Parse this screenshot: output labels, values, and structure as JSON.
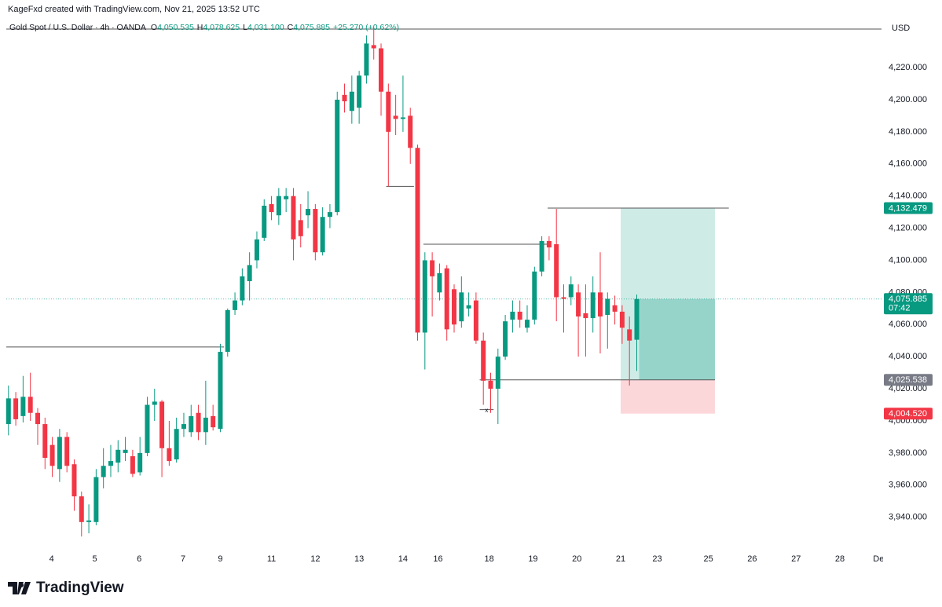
{
  "credit": "KageFxd created with TradingView.com, Nov 21, 2025 13:52 UTC",
  "brand": "TradingView",
  "chart_data": {
    "type": "candlestick",
    "symbol": "Gold Spot / U.S. Dollar · 4h · OANDA",
    "legend": [
      {
        "key": "O",
        "text": "4,050.535"
      },
      {
        "key": "H",
        "text": "4,078.625"
      },
      {
        "key": "L",
        "text": "4,031.100"
      },
      {
        "key": "C",
        "text": "4,075.885"
      }
    ],
    "change": "+25.270 (+0.62%)",
    "currency": "USD",
    "countdown": "07:42",
    "up_color": "#089981",
    "down_color": "#f23645",
    "grid": false,
    "open": [
      3998,
      4014,
      4003,
      4015,
      4005,
      3998,
      3985,
      3970,
      3990,
      3973,
      3953,
      3937,
      3937,
      3965,
      3972,
      3974,
      3980,
      3978,
      3968,
      3980,
      4010,
      4012,
      3983,
      3976,
      3995,
      3993,
      4005,
      3993,
      4003,
      3995,
      4043,
      4069,
      4075,
      4087,
      4100,
      4114,
      4135,
      4128,
      4138,
      4140,
      4125,
      4128,
      4132,
      4105,
      4127,
      4130,
      4203,
      4193,
      4195,
      4215,
      4234,
      4232,
      4205,
      4190,
      4188,
      4190,
      4170,
      4055,
      4100,
      4080,
      4095,
      4082,
      4062,
      4070,
      4075,
      4050,
      4025,
      4020,
      4040,
      4063,
      4068,
      4058,
      4063,
      4093,
      4112,
      4110,
      4077,
      4077,
      4080,
      4067,
      4064,
      4080,
      4066,
      4072,
      4068,
      4057,
      4050.535
    ],
    "high": [
      4022,
      4018,
      4028,
      4030,
      4008,
      4002,
      3990,
      3995,
      3993,
      3976,
      3956,
      3948,
      3970,
      3983,
      3985,
      3988,
      3990,
      3982,
      3990,
      4015,
      4020,
      4013,
      4000,
      4002,
      4005,
      4010,
      4010,
      4025,
      4010,
      4048,
      4070,
      4080,
      4095,
      4105,
      4118,
      4138,
      4140,
      4145,
      4145,
      4145,
      4135,
      4143,
      4135,
      4133,
      4135,
      4205,
      4210,
      4215,
      4218,
      4240,
      4245,
      4235,
      4210,
      4203,
      4215,
      4195,
      4172,
      4105,
      4105,
      4098,
      4097,
      4085,
      4090,
      4080,
      4080,
      4055,
      4030,
      4045,
      4066,
      4075,
      4075,
      4072,
      4096,
      4115,
      4115,
      4132,
      4085,
      4090,
      4085,
      4085,
      4090,
      4105,
      4080,
      4078,
      4072,
      4065,
      4078.625
    ],
    "low": [
      3991,
      3997,
      3999,
      4000,
      3985,
      3970,
      3965,
      3962,
      3968,
      3944,
      3928,
      3930,
      3935,
      3958,
      3965,
      3968,
      3975,
      3965,
      3966,
      3978,
      4000,
      3965,
      3972,
      3974,
      3990,
      3990,
      3988,
      3985,
      3994,
      3993,
      4040,
      4066,
      4072,
      4075,
      4095,
      4112,
      4125,
      4122,
      4130,
      4100,
      4108,
      4120,
      4100,
      4103,
      4120,
      4128,
      4192,
      4185,
      4185,
      4210,
      4225,
      4190,
      4146,
      4178,
      4180,
      4160,
      4050,
      4032,
      4065,
      4075,
      4050,
      4055,
      4058,
      4065,
      4048,
      4010,
      4005,
      3998,
      4038,
      4055,
      4058,
      4055,
      4060,
      4090,
      4100,
      4062,
      4055,
      4072,
      4040,
      4040,
      4055,
      4042,
      4045,
      4060,
      4048,
      4022,
      4031.1
    ],
    "close": [
      4014,
      4001,
      4015,
      4005,
      3998,
      3977,
      3972,
      3990,
      3972,
      3953,
      3937,
      3938,
      3965,
      3972,
      3975,
      3982,
      3982,
      3967,
      3980,
      4010,
      4012,
      3983,
      3975,
      3995,
      3998,
      4003,
      3993,
      4002,
      3996,
      4043,
      4069,
      4075,
      4090,
      4097,
      4113,
      4134,
      4130,
      4140,
      4140,
      4113,
      4115,
      4132,
      4105,
      4127,
      4130,
      4200,
      4199,
      4205,
      4215,
      4235,
      4232,
      4205,
      4180,
      4188,
      4189,
      4170,
      4055,
      4100,
      4090,
      4092,
      4057,
      4060,
      4080,
      4072,
      4050,
      4025,
      4020,
      4040,
      4062,
      4068,
      4063,
      4063,
      4093,
      4112,
      4108,
      4077,
      4076,
      4085,
      4065,
      4064,
      4080,
      4065,
      4076,
      4068,
      4058,
      4050,
      4075.885
    ],
    "xlim": [
      -0.3,
      119.5
    ],
    "xticks": [
      {
        "value": 5.9,
        "label": "4"
      },
      {
        "value": 11.8,
        "label": "5"
      },
      {
        "value": 17.9,
        "label": "6"
      },
      {
        "value": 23.9,
        "label": "7"
      },
      {
        "value": 29.0,
        "label": "9"
      },
      {
        "value": 36.0,
        "label": "11"
      },
      {
        "value": 42.0,
        "label": "12"
      },
      {
        "value": 48.0,
        "label": "13"
      },
      {
        "value": 54.0,
        "label": "14"
      },
      {
        "value": 58.8,
        "label": "16"
      },
      {
        "value": 65.8,
        "label": "18"
      },
      {
        "value": 71.8,
        "label": "19"
      },
      {
        "value": 77.8,
        "label": "20"
      },
      {
        "value": 83.8,
        "label": "21"
      },
      {
        "value": 88.8,
        "label": "23"
      },
      {
        "value": 95.8,
        "label": "25"
      },
      {
        "value": 101.8,
        "label": "26"
      },
      {
        "value": 107.8,
        "label": "27"
      },
      {
        "value": 113.8,
        "label": "28"
      },
      {
        "value": 119.4,
        "label": "Dec"
      }
    ],
    "ylim": [
      3919.8,
      4252.3
    ],
    "yticks": [
      {
        "value": 3940,
        "label": "3,940.000"
      },
      {
        "value": 3960,
        "label": "3,960.000"
      },
      {
        "value": 3980,
        "label": "3,980.000"
      },
      {
        "value": 4000,
        "label": "4,000.000"
      },
      {
        "value": 4020,
        "label": "4,020.000"
      },
      {
        "value": 4040,
        "label": "4,040.000"
      },
      {
        "value": 4060,
        "label": "4,060.000"
      },
      {
        "value": 4080,
        "label": "4,080.000"
      },
      {
        "value": 4100,
        "label": "4,100.000"
      },
      {
        "value": 4120,
        "label": "4,120.000"
      },
      {
        "value": 4140,
        "label": "4,140.000"
      },
      {
        "value": 4160,
        "label": "4,160.000"
      },
      {
        "value": 4180,
        "label": "4,180.000"
      },
      {
        "value": 4200,
        "label": "4,200.000"
      },
      {
        "value": 4220,
        "label": "4,220.000"
      }
    ],
    "levels": [
      {
        "price": 4244,
        "from": -0.3,
        "to": 119.5
      },
      {
        "price": 4046,
        "from": -0.3,
        "to": 29.5
      },
      {
        "price": 4146,
        "from": 51.7,
        "to": 55.5
      },
      {
        "price": 4110,
        "from": 56.8,
        "to": 73.8
      },
      {
        "price": 4132.479,
        "from": 73.8,
        "to": 98.6
      },
      {
        "price": 4025.538,
        "from": 64.5,
        "to": 96.7
      },
      {
        "price": 4007,
        "from": 64.5,
        "to": 66.4,
        "marker": "x"
      }
    ],
    "position": {
      "from": 83.8,
      "to": 96.7,
      "target": 4132.479,
      "target_label": "4,132.479",
      "entry": 4025.538,
      "entry_label": "4,025.538",
      "stop": 4004.52,
      "stop_label": "4,004.520"
    }
  }
}
